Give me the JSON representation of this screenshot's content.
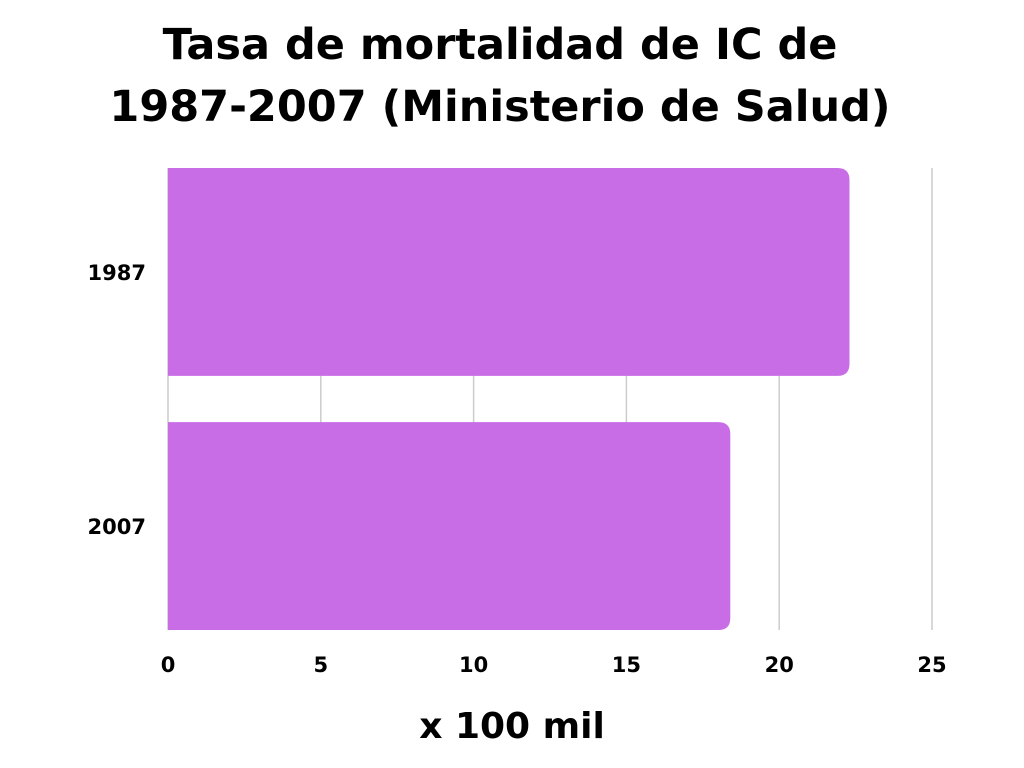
{
  "chart_data": {
    "type": "bar",
    "orientation": "horizontal",
    "title_lines": [
      "Tasa de mortalidad de IC de",
      "1987-2007 (Ministerio de Salud)"
    ],
    "categories": [
      "1987",
      "2007"
    ],
    "values": [
      22.3,
      18.4
    ],
    "xlabel": "x 100 mil",
    "ylabel": "",
    "xlim": [
      0,
      25
    ],
    "xticks": [
      "0",
      "5",
      "10",
      "15",
      "20",
      "25"
    ],
    "grid": true,
    "bar_color": "#c86de6",
    "grid_color": "#cccccc"
  }
}
